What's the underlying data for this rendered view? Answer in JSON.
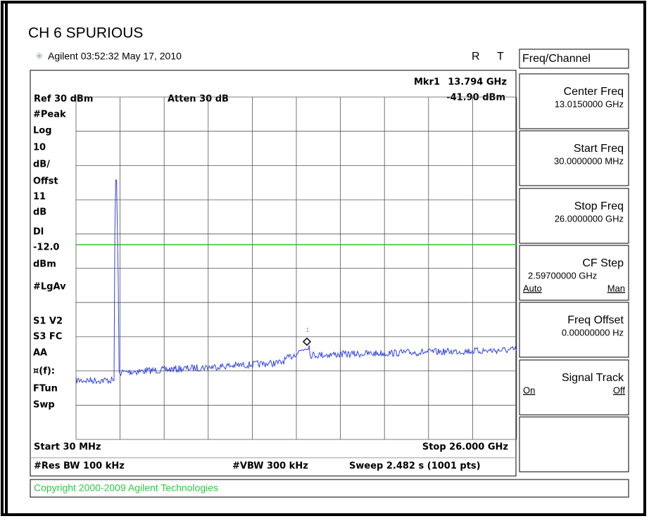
{
  "header": {
    "title": "CH 6 SPURIOUS",
    "timestamp": "Agilent 03:52:32  May 17, 2010",
    "status_r": "R",
    "status_t": "T"
  },
  "display": {
    "marker_name": "Mkr1",
    "marker_freq": "13.794 GHz",
    "marker_level": "-41.90 dBm",
    "ref": "Ref 30 dBm",
    "atten": "Atten 30 dB",
    "left_labels": [
      "#Peak",
      "Log",
      "10",
      "dB/",
      "Offst",
      "11",
      "dB",
      "Dl",
      "-12.0",
      "dBm",
      "#LgAv",
      "S1  V2",
      "S3  FC",
      "AA",
      "¤(f):",
      "FTun",
      "Swp"
    ],
    "marker_number": "1",
    "start": "Start 30 MHz",
    "stop": "Stop 26.000 GHz",
    "rbw": "#Res BW 100 kHz",
    "vbw": "#VBW 300 kHz",
    "sweep": "Sweep 2.482 s (1001 pts)"
  },
  "menu": {
    "title": "Freq/Channel",
    "keys": [
      {
        "label": "Center Freq",
        "value": "13.0150000 GHz"
      },
      {
        "label": "Start Freq",
        "value": "30.0000000 MHz"
      },
      {
        "label": "Stop Freq",
        "value": "26.0000000 GHz"
      },
      {
        "label": "CF Step",
        "value": "2.59700000 GHz",
        "left": "Auto",
        "right": "Man"
      },
      {
        "label": "Freq Offset",
        "value": "0.00000000  Hz"
      },
      {
        "label": "Signal Track",
        "left": "On",
        "right": "Off"
      }
    ]
  },
  "copyright": "Copyright 2000-2009 Agilent Technologies"
}
